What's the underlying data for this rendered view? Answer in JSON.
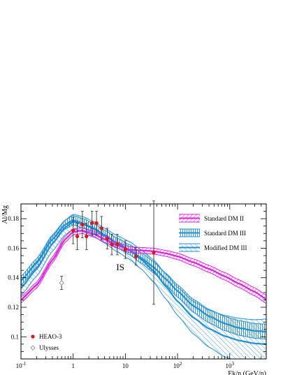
{
  "chart_data": {
    "type": "line",
    "title": "",
    "xlabel": "Ek/n (GeV/n)",
    "ylabel": "Al/Mg",
    "xscale": "log",
    "xlim": [
      0.1,
      5000
    ],
    "ylim": [
      0.085,
      0.19
    ],
    "x_ticks": [
      {
        "value": 0.1,
        "base": "10",
        "exp": "-1"
      },
      {
        "value": 1,
        "base": "1",
        "exp": ""
      },
      {
        "value": 10,
        "base": "10",
        "exp": ""
      },
      {
        "value": 100,
        "base": "10",
        "exp": "2"
      },
      {
        "value": 1000,
        "base": "10",
        "exp": "3"
      }
    ],
    "y_ticks": [
      {
        "value": 0.1,
        "label": "0.1"
      },
      {
        "value": 0.12,
        "label": "0.12"
      },
      {
        "value": 0.14,
        "label": "0.14"
      },
      {
        "value": 0.16,
        "label": "0.16"
      },
      {
        "value": 0.18,
        "label": "0.18"
      }
    ],
    "annotation": "IS",
    "annotation_pos": {
      "x": 8,
      "y": 0.145
    },
    "legend_placement": "top-right",
    "series": [
      {
        "name": "Standard DM II",
        "color": "#e020e0",
        "style": "band-diagonal",
        "x": [
          0.1,
          0.2,
          0.4,
          0.7,
          1,
          1.5,
          2.5,
          4,
          7,
          12,
          20,
          35,
          60,
          100,
          200,
          400,
          800,
          1500,
          3000,
          5000
        ],
        "y": [
          0.125,
          0.135,
          0.152,
          0.166,
          0.171,
          0.172,
          0.1695,
          0.166,
          0.162,
          0.159,
          0.1585,
          0.158,
          0.1565,
          0.1545,
          0.1505,
          0.146,
          0.141,
          0.136,
          0.1305,
          0.1255
        ],
        "width": [
          0.002,
          0.002,
          0.002,
          0.002,
          0.002,
          0.002,
          0.002,
          0.002,
          0.002,
          0.002,
          0.002,
          0.002,
          0.002,
          0.0022,
          0.0023,
          0.0024,
          0.0025,
          0.0026,
          0.0027,
          0.0028
        ]
      },
      {
        "name": "Standard DM III",
        "color": "#1f8fd8",
        "style": "band-vertical",
        "x": [
          0.1,
          0.2,
          0.4,
          0.7,
          1,
          1.5,
          2.5,
          4,
          7,
          12,
          20,
          35,
          60,
          100,
          200,
          400,
          800,
          1500,
          3000,
          5000
        ],
        "y": [
          0.138,
          0.15,
          0.166,
          0.176,
          0.179,
          0.177,
          0.1735,
          0.169,
          0.1635,
          0.159,
          0.1535,
          0.147,
          0.139,
          0.131,
          0.121,
          0.114,
          0.109,
          0.106,
          0.104,
          0.1035
        ],
        "width": [
          0.003,
          0.003,
          0.003,
          0.003,
          0.0032,
          0.0032,
          0.0032,
          0.0032,
          0.0033,
          0.0034,
          0.0036,
          0.0038,
          0.004,
          0.0042,
          0.0044,
          0.0046,
          0.0048,
          0.005,
          0.005,
          0.005
        ]
      },
      {
        "name": "Modified DM III",
        "color": "#1f8fd8",
        "style": "band-hatch",
        "x": [
          0.1,
          0.2,
          0.4,
          0.7,
          1,
          1.5,
          2.5,
          4,
          7,
          12,
          20,
          35,
          60,
          100,
          200,
          400,
          800,
          1500,
          3000,
          5000
        ],
        "y": [
          0.133,
          0.146,
          0.163,
          0.174,
          0.178,
          0.1765,
          0.173,
          0.1685,
          0.163,
          0.1585,
          0.1525,
          0.1445,
          0.134,
          0.124,
          0.113,
          0.1055,
          0.1005,
          0.0975,
          0.0955,
          0.095
        ],
        "width": [
          0.005,
          0.005,
          0.005,
          0.005,
          0.005,
          0.005,
          0.005,
          0.005,
          0.0055,
          0.006,
          0.0065,
          0.0075,
          0.0085,
          0.0095,
          0.011,
          0.0125,
          0.014,
          0.015,
          0.016,
          0.017
        ]
      }
    ],
    "points": [
      {
        "name": "HEAO-3",
        "color": "#e8110c",
        "marker": "filled-circle",
        "data": [
          {
            "x": 1.0,
            "y": 0.172,
            "err": 0.009
          },
          {
            "x": 1.2,
            "y": 0.168,
            "err": 0.009
          },
          {
            "x": 1.5,
            "y": 0.176,
            "err": 0.009
          },
          {
            "x": 1.8,
            "y": 0.168,
            "err": 0.009
          },
          {
            "x": 2.3,
            "y": 0.177,
            "err": 0.008
          },
          {
            "x": 2.8,
            "y": 0.177,
            "err": 0.008
          },
          {
            "x": 3.5,
            "y": 0.1735,
            "err": 0.008
          },
          {
            "x": 4.5,
            "y": 0.1665,
            "err": 0.007
          },
          {
            "x": 5.5,
            "y": 0.1625,
            "err": 0.007
          },
          {
            "x": 7.0,
            "y": 0.1625,
            "err": 0.007
          },
          {
            "x": 10,
            "y": 0.159,
            "err": 0.006
          },
          {
            "x": 16,
            "y": 0.1545,
            "err": 0.006
          },
          {
            "x": 35,
            "y": 0.157,
            "err": 0.035
          }
        ]
      },
      {
        "name": "Ulysses",
        "color": "#999999",
        "marker": "open-diamond",
        "data": [
          {
            "x": 0.6,
            "y": 0.1365,
            "err": 0.0045
          }
        ]
      }
    ]
  }
}
